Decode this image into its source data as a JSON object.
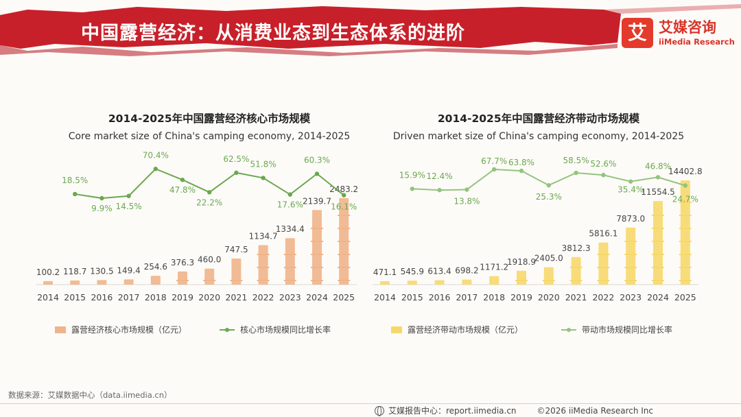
{
  "header": {
    "title": "中国露营经济：从消费业态到生态体系的进阶",
    "brand_mark": "艾",
    "brand_cn": "艾媒咨询",
    "brand_en": "iiMedia Research"
  },
  "colors": {
    "banner": "#c8202a",
    "core_bar": "#f0b48a",
    "core_line": "#6aa84f",
    "driven_bar": "#f6d86a",
    "driven_line": "#93c47d",
    "label": "#6aa84f"
  },
  "chart_data": [
    {
      "type": "bar",
      "title": "2014-2025年中国露营经济核心市场规模",
      "subtitle": "Core market size of China's camping economy, 2014-2025",
      "categories": [
        "2014",
        "2015",
        "2016",
        "2017",
        "2018",
        "2019",
        "2020",
        "2021",
        "2022",
        "2023",
        "2024",
        "2025"
      ],
      "series": [
        {
          "name": "露营经济核心市场规模（亿元）",
          "type": "bar",
          "values": [
            100.2,
            118.7,
            130.5,
            149.4,
            254.6,
            376.3,
            460.0,
            747.5,
            1134.7,
            1334.4,
            2139.7,
            2483.2
          ]
        },
        {
          "name": "核心市场规模同比增长率",
          "type": "line",
          "values": [
            null,
            18.5,
            9.9,
            14.5,
            70.4,
            47.8,
            22.2,
            62.5,
            51.8,
            17.6,
            60.3,
            16.1
          ]
        }
      ],
      "value_labels": [
        "100.2",
        "118.7",
        "130.5",
        "149.4",
        "254.6",
        "376.3",
        "460.0",
        "747.5",
        "1134.7",
        "1334.4",
        "2139.7",
        "2483.2"
      ],
      "rate_labels": [
        null,
        "18.5%",
        "9.9%",
        "14.5%",
        "70.4%",
        "47.8%",
        "22.2%",
        "62.5%",
        "51.8%",
        "17.6%",
        "60.3%",
        "16.1%"
      ],
      "ylim": [
        0,
        2500
      ],
      "rate_range": [
        0,
        75
      ]
    },
    {
      "type": "bar",
      "title": "2014-2025年中国露营经济带动市场规模",
      "subtitle": "Driven market size of China's camping economy, 2014-2025",
      "categories": [
        "2014",
        "2015",
        "2016",
        "2017",
        "2018",
        "2019",
        "2020",
        "2021",
        "2022",
        "2023",
        "2024",
        "2025"
      ],
      "series": [
        {
          "name": "露营经济带动市场规模（亿元）",
          "type": "bar",
          "values": [
            471.1,
            545.9,
            613.4,
            698.2,
            1171.2,
            1918.9,
            2405.0,
            3812.3,
            5816.1,
            7873.0,
            11554.5,
            14402.8
          ]
        },
        {
          "name": "带动市场规模同比增长率",
          "type": "line",
          "values": [
            null,
            15.9,
            12.4,
            13.8,
            67.7,
            63.8,
            25.3,
            58.5,
            52.6,
            35.4,
            46.8,
            24.7
          ]
        }
      ],
      "value_labels": [
        "471.1",
        "545.9",
        "613.4",
        "698.2",
        "1171.2",
        "1918.9",
        "2405.0",
        "3812.3",
        "5816.1",
        "7873.0",
        "11554.5",
        "14402.8"
      ],
      "rate_labels": [
        null,
        "15.9%",
        "12.4%",
        "13.8%",
        "67.7%",
        "63.8%",
        "25.3%",
        "58.5%",
        "52.6%",
        "35.4%",
        "46.8%",
        "24.7%"
      ],
      "ylim": [
        0,
        14500
      ],
      "rate_range": [
        0,
        75
      ]
    }
  ],
  "legend": {
    "core_bar": "露营经济核心市场规模（亿元）",
    "core_line": "核心市场规模同比增长率",
    "driven_bar": "露营经济带动市场规模（亿元）",
    "driven_line": "带动市场规模同比增长率"
  },
  "footer": {
    "source": "数据来源：艾媒数据中心（data.iimedia.cn）",
    "report_center": "艾媒报告中心：report.iimedia.cn",
    "copyright": "©2026  iiMedia Research  Inc"
  }
}
